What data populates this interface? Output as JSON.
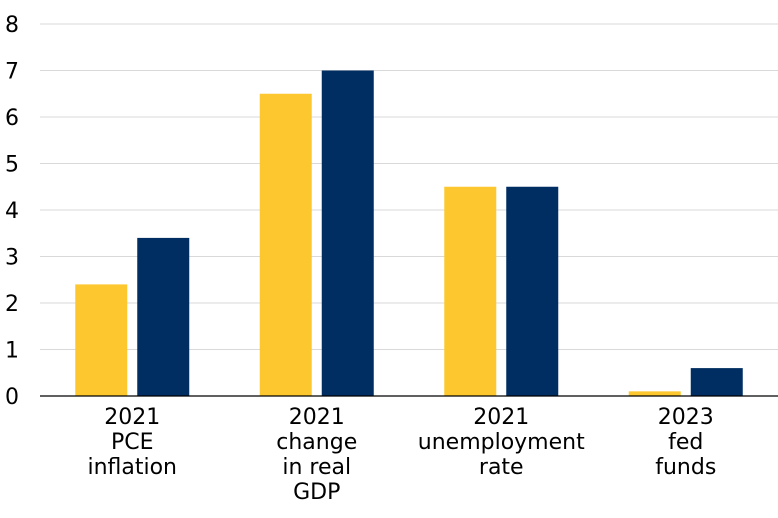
{
  "chart_data": {
    "type": "bar",
    "categories": [
      [
        "2021",
        "PCE",
        "inflation"
      ],
      [
        "2021",
        "change",
        "in real",
        "GDP"
      ],
      [
        "2021",
        "unemployment",
        "rate"
      ],
      [
        "2023",
        "fed",
        "funds"
      ]
    ],
    "series": [
      {
        "values": [
          2.4,
          6.5,
          4.5,
          0.1
        ],
        "color": "#FDC82F"
      },
      {
        "values": [
          3.4,
          7.0,
          4.5,
          0.6
        ],
        "color": "#002D62"
      }
    ],
    "yticks": [
      "0",
      "1",
      "2",
      "3",
      "4",
      "5",
      "6",
      "7",
      "8"
    ],
    "ylim": [
      0,
      8
    ],
    "grid": true,
    "legend": "none"
  }
}
